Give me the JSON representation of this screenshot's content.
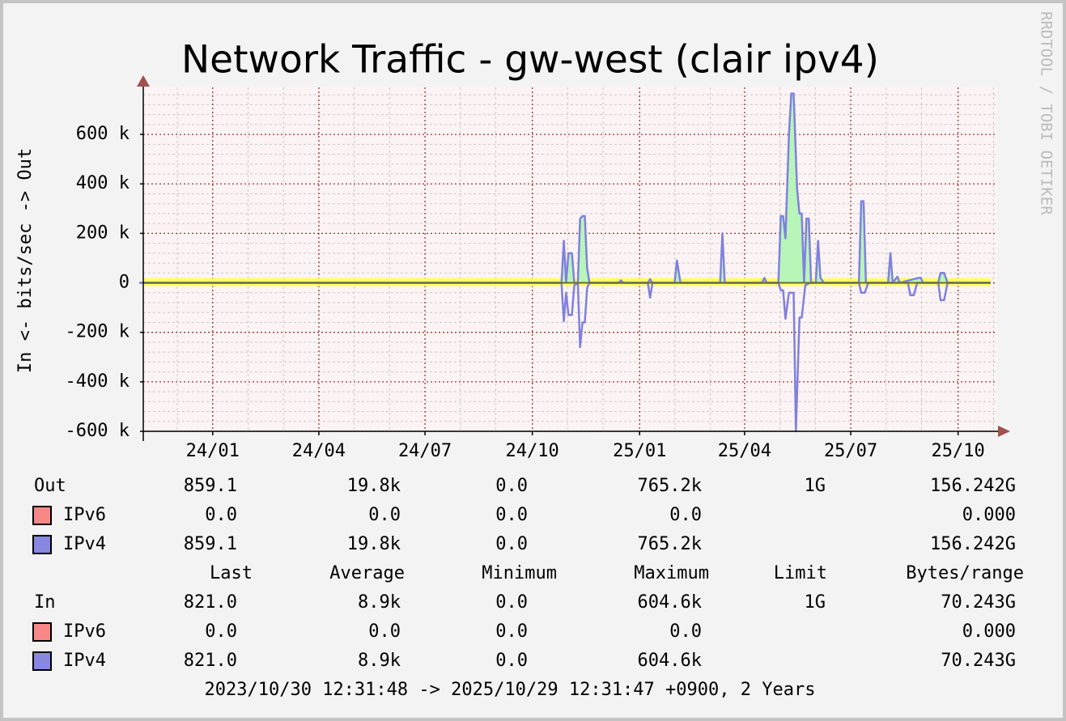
{
  "chart_data": {
    "type": "line",
    "title": "Network Traffic - gw-west (clair ipv4)",
    "y_label": "In <- bits/sec -> Out",
    "watermark": "RRDTOOL / TOBI OETIKER",
    "footer": "2023/10/30 12:31:48 -> 2025/10/29 12:31:47 +0900, 2 Years",
    "xlim": [
      0,
      730
    ],
    "xticks": [
      {
        "value": 63,
        "label": "24/01"
      },
      {
        "value": 154,
        "label": "24/04"
      },
      {
        "value": 245,
        "label": "24/07"
      },
      {
        "value": 337,
        "label": "24/10"
      },
      {
        "value": 429,
        "label": "25/01"
      },
      {
        "value": 519,
        "label": "25/04"
      },
      {
        "value": 610,
        "label": "25/07"
      },
      {
        "value": 702,
        "label": "25/10"
      }
    ],
    "ylim": [
      -600000,
      790000
    ],
    "yticks": [
      {
        "value": -600000,
        "label": "-600 k"
      },
      {
        "value": -400000,
        "label": "-400 k"
      },
      {
        "value": -200000,
        "label": "-200 k"
      },
      0,
      {
        "value": 200000,
        "label": "200 k"
      },
      {
        "value": 400000,
        "label": "400 k"
      },
      {
        "value": 600000,
        "label": "600 k"
      }
    ],
    "grid": true,
    "stat_columns": [
      "Last",
      "Average",
      "Minimum",
      "Maximum",
      "Limit",
      "Bytes/range"
    ],
    "series": [
      {
        "name": "Out",
        "color": "#8080e0",
        "fill": "#b8f5b8",
        "x": [
          0,
          362,
          364,
          366,
          368,
          371,
          373,
          376,
          378,
          380,
          382,
          384,
          386,
          411,
          413,
          415,
          436,
          438,
          440,
          459,
          461,
          464,
          498,
          500,
          502,
          534,
          536,
          538,
          548,
          550,
          552,
          554,
          557,
          559,
          561,
          564,
          566,
          568,
          570,
          572,
          574,
          576,
          580,
          582,
          584,
          587,
          617,
          619,
          621,
          623,
          642,
          644,
          646,
          650,
          652,
          668,
          670,
          672,
          685,
          687,
          690,
          693,
          730
        ],
        "values": [
          0,
          0,
          170000,
          0,
          120000,
          120000,
          0,
          0,
          260000,
          270000,
          270000,
          60000,
          0,
          0,
          10000,
          0,
          0,
          15000,
          0,
          0,
          90000,
          0,
          0,
          200000,
          0,
          0,
          20000,
          0,
          0,
          270000,
          270000,
          180000,
          600000,
          765000,
          765000,
          380000,
          280000,
          280000,
          0,
          260000,
          260000,
          0,
          0,
          170000,
          20000,
          0,
          0,
          330000,
          330000,
          0,
          0,
          120000,
          0,
          25000,
          0,
          20000,
          20000,
          0,
          0,
          40000,
          40000,
          0,
          0
        ],
        "stats": {
          "last": "859.1",
          "average": "19.8k",
          "minimum": "0.0",
          "maximum": "765.2k",
          "limit": "1G",
          "bytes": "156.242G"
        },
        "breakdown": [
          {
            "name": "IPv6",
            "color": "#f88888",
            "stats": {
              "last": "0.0",
              "average": "0.0",
              "minimum": "0.0",
              "maximum": "0.0",
              "bytes": "0.000"
            }
          },
          {
            "name": "IPv4",
            "color": "#8888e0",
            "stats": {
              "last": "859.1",
              "average": "19.8k",
              "minimum": "0.0",
              "maximum": "765.2k",
              "bytes": "156.242G"
            }
          }
        ]
      },
      {
        "name": "In",
        "color": "#8080e0",
        "x": [
          0,
          362,
          364,
          366,
          368,
          371,
          373,
          376,
          378,
          380,
          382,
          384,
          386,
          436,
          438,
          440,
          548,
          550,
          552,
          554,
          557,
          561,
          563,
          566,
          568,
          571,
          575,
          617,
          619,
          622,
          625,
          659,
          661,
          664,
          667,
          685,
          687,
          690,
          693,
          730
        ],
        "values": [
          0,
          0,
          -155000,
          -40000,
          -130000,
          -130000,
          -10000,
          0,
          -260000,
          -160000,
          -160000,
          -20000,
          0,
          0,
          -60000,
          0,
          0,
          -30000,
          -30000,
          -145000,
          -40000,
          -40000,
          -600000,
          -140000,
          -140000,
          -10000,
          0,
          0,
          -40000,
          -40000,
          0,
          0,
          -50000,
          -50000,
          0,
          0,
          -70000,
          -70000,
          0,
          0
        ],
        "stats": {
          "last": "821.0",
          "average": "8.9k",
          "minimum": "0.0",
          "maximum": "604.6k",
          "limit": "1G",
          "bytes": "70.243G"
        },
        "breakdown": [
          {
            "name": "IPv6",
            "color": "#f88888",
            "stats": {
              "last": "0.0",
              "average": "0.0",
              "minimum": "0.0",
              "maximum": "0.0",
              "bytes": "0.000"
            }
          },
          {
            "name": "IPv4",
            "color": "#8888e0",
            "stats": {
              "last": "821.0",
              "average": "8.9k",
              "minimum": "0.0",
              "maximum": "604.6k",
              "bytes": "70.243G"
            }
          }
        ]
      }
    ]
  }
}
